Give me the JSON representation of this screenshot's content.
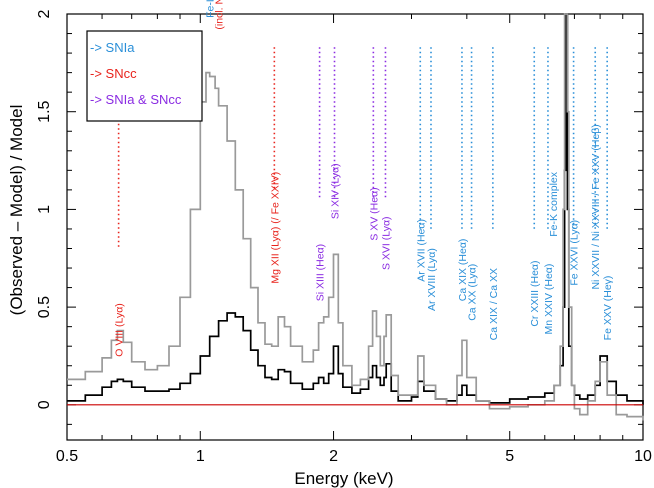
{
  "colors": {
    "SNIa": "#2a8fd8",
    "SNcc": "#e8231c",
    "both": "#8a2be2",
    "model_line": "#cc0000",
    "series_black": "#000000",
    "series_gray": "#9a9a9a"
  },
  "chart_data": {
    "type": "line",
    "title": "",
    "xlabel": "Energy (keV)",
    "ylabel": "(Observed – Model) / Model",
    "xscale": "log",
    "xlim": [
      0.5,
      10
    ],
    "ylim": [
      -0.18,
      2.0
    ],
    "xticks": [
      {
        "value": 0.5,
        "label": "0.5"
      },
      {
        "value": 1,
        "label": "1"
      },
      {
        "value": 2,
        "label": "2"
      },
      {
        "value": 5,
        "label": "5"
      },
      {
        "value": 10,
        "label": "10"
      }
    ],
    "yticks": [
      {
        "value": 0,
        "label": "0"
      },
      {
        "value": 0.5,
        "label": "0.5"
      },
      {
        "value": 1,
        "label": "1"
      },
      {
        "value": 1.5,
        "label": "1.5"
      },
      {
        "value": 2,
        "label": "2"
      }
    ],
    "reference_line": {
      "y": 0
    },
    "legend": {
      "position": "top-left",
      "entries": [
        {
          "label": "-> SNIa",
          "group": "SNIa"
        },
        {
          "label": "-> SNcc",
          "group": "SNcc"
        },
        {
          "label": "-> SNIa & SNcc",
          "group": "both"
        }
      ]
    },
    "series": [
      {
        "style": "black",
        "x": [
          0.5,
          0.55,
          0.6,
          0.63,
          0.65,
          0.67,
          0.7,
          0.75,
          0.8,
          0.85,
          0.9,
          0.95,
          1.0,
          1.05,
          1.1,
          1.15,
          1.2,
          1.25,
          1.3,
          1.35,
          1.4,
          1.45,
          1.5,
          1.55,
          1.6,
          1.7,
          1.8,
          1.85,
          1.9,
          1.95,
          2.0,
          2.05,
          2.1,
          2.2,
          2.3,
          2.4,
          2.45,
          2.5,
          2.55,
          2.6,
          2.63,
          2.7,
          2.8,
          3.0,
          3.1,
          3.2,
          3.4,
          3.6,
          3.8,
          3.9,
          4.0,
          4.2,
          4.5,
          5.0,
          5.5,
          6.0,
          6.3,
          6.5,
          6.6,
          6.65,
          6.7,
          6.75,
          6.8,
          6.9,
          7.0,
          7.2,
          7.5,
          7.8,
          8.0,
          8.3,
          8.7,
          9.2,
          10.0
        ],
        "y": [
          0.02,
          0.05,
          0.09,
          0.12,
          0.13,
          0.12,
          0.09,
          0.07,
          0.07,
          0.08,
          0.11,
          0.16,
          0.25,
          0.35,
          0.43,
          0.47,
          0.45,
          0.38,
          0.28,
          0.2,
          0.14,
          0.13,
          0.18,
          0.17,
          0.11,
          0.08,
          0.11,
          0.14,
          0.11,
          0.16,
          0.3,
          0.16,
          0.09,
          0.06,
          0.08,
          0.14,
          0.2,
          0.14,
          0.1,
          0.14,
          0.21,
          0.07,
          0.02,
          0.04,
          0.12,
          0.07,
          0.03,
          0.02,
          0.05,
          0.1,
          0.05,
          0.02,
          0.01,
          0.03,
          0.04,
          0.06,
          0.1,
          0.2,
          0.5,
          1.2,
          2.0,
          1.0,
          0.3,
          0.1,
          0.05,
          0.03,
          0.05,
          0.1,
          0.25,
          0.12,
          0.05,
          0.02,
          0.0
        ]
      },
      {
        "style": "gray",
        "x": [
          0.5,
          0.55,
          0.6,
          0.63,
          0.65,
          0.67,
          0.7,
          0.75,
          0.8,
          0.85,
          0.9,
          0.95,
          1.0,
          1.03,
          1.05,
          1.08,
          1.1,
          1.15,
          1.2,
          1.25,
          1.3,
          1.35,
          1.4,
          1.45,
          1.5,
          1.55,
          1.6,
          1.7,
          1.8,
          1.85,
          1.9,
          1.95,
          2.0,
          2.05,
          2.1,
          2.2,
          2.3,
          2.4,
          2.45,
          2.5,
          2.55,
          2.6,
          2.63,
          2.7,
          2.8,
          3.0,
          3.1,
          3.2,
          3.4,
          3.6,
          3.8,
          3.9,
          4.0,
          4.2,
          4.5,
          5.0,
          5.5,
          6.0,
          6.3,
          6.5,
          6.6,
          6.65,
          6.7,
          6.75,
          6.8,
          6.9,
          7.0,
          7.2,
          7.5,
          7.8,
          8.0,
          8.3,
          8.7,
          9.2,
          10.0
        ],
        "y": [
          0.13,
          0.17,
          0.24,
          0.33,
          0.38,
          0.32,
          0.22,
          0.18,
          0.2,
          0.3,
          0.55,
          1.0,
          1.55,
          1.7,
          1.68,
          1.62,
          1.53,
          1.35,
          1.1,
          0.85,
          0.6,
          0.42,
          0.31,
          0.3,
          0.45,
          0.4,
          0.3,
          0.22,
          0.28,
          0.42,
          0.45,
          0.55,
          0.77,
          0.42,
          0.2,
          0.1,
          0.13,
          0.3,
          0.48,
          0.35,
          0.2,
          0.35,
          0.46,
          0.15,
          0.05,
          0.05,
          0.25,
          0.1,
          0.03,
          0.0,
          0.15,
          0.33,
          0.14,
          0.02,
          -0.02,
          -0.01,
          0.0,
          0.02,
          0.1,
          0.3,
          1.0,
          2.0,
          2.0,
          1.5,
          0.5,
          0.1,
          -0.02,
          -0.05,
          0.02,
          0.12,
          0.22,
          0.05,
          -0.05,
          -0.06,
          -0.08
        ]
      }
    ],
    "line_markers": [
      {
        "energy": 0.654,
        "label": "O VIII (Lyα)",
        "group": "SNcc",
        "ymin": 0.8,
        "ymax": 1.83
      },
      {
        "energy": 1.05,
        "label": "Fe-L complex",
        "label2": "",
        "group": "SNIa",
        "ymin": 0,
        "ymax": 0
      },
      {
        "energy": 1.1,
        "label": "(incl. Ne)",
        "group": "SNcc",
        "ymin": 0,
        "ymax": 0
      },
      {
        "energy": 1.47,
        "label": "Mg XII (Lyα) (/ Fe XXIV)",
        "group": "SNcc",
        "ymin": 1.1,
        "ymax": 1.83
      },
      {
        "energy": 1.86,
        "label": "Si XIII (Heα)",
        "group": "both",
        "ymin": 1.05,
        "ymax": 1.83
      },
      {
        "energy": 2.01,
        "label": "Si XIV (Lyα)",
        "group": "both",
        "ymin": 1.05,
        "ymax": 1.83
      },
      {
        "energy": 2.46,
        "label": "S XV (Heα)",
        "group": "both",
        "ymin": 1.05,
        "ymax": 1.83
      },
      {
        "energy": 2.62,
        "label": "S XVI (Lyα)",
        "group": "both",
        "ymin": 1.05,
        "ymax": 1.83
      },
      {
        "energy": 3.14,
        "label": "Ar XVII (Heα)",
        "group": "SNIa",
        "ymin": 0.9,
        "ymax": 1.83
      },
      {
        "energy": 3.32,
        "label": "Ar XVIII (Lyα)",
        "group": "SNIa",
        "ymin": 0.9,
        "ymax": 1.83
      },
      {
        "energy": 3.9,
        "label": "Ca XIX (Heα)",
        "group": "SNIa",
        "ymin": 0.9,
        "ymax": 1.83
      },
      {
        "energy": 4.1,
        "label": "Ca XX (Lyα)",
        "group": "SNIa",
        "ymin": 0.9,
        "ymax": 1.83
      },
      {
        "energy": 4.58,
        "label": "Ca XIX / Ca XX",
        "group": "SNIa",
        "ymin": 0.9,
        "ymax": 1.83
      },
      {
        "energy": 5.68,
        "label": "Cr XXIII (Heα)",
        "group": "SNIa",
        "ymin": 0.9,
        "ymax": 1.83
      },
      {
        "energy": 6.1,
        "label": "Mn XXIV (Heα)",
        "group": "SNIa",
        "ymin": 0.9,
        "ymax": 1.83
      },
      {
        "energy": 6.7,
        "label": "Fe-K complex",
        "group": "SNIa",
        "ymin": 0,
        "ymax": 0
      },
      {
        "energy": 6.97,
        "label": "Fe XXVI (Lyα)",
        "group": "SNIa",
        "ymin": 0.9,
        "ymax": 1.83
      },
      {
        "energy": 7.8,
        "label": "Ni XXVII / Ni XXVIII / Fe XXV (Heβ)",
        "group": "SNIa",
        "ymin": 0.9,
        "ymax": 1.83
      },
      {
        "energy": 8.3,
        "label": "Fe XXV (Heγ)",
        "group": "SNIa",
        "ymin": 0.9,
        "ymax": 1.83
      }
    ]
  }
}
